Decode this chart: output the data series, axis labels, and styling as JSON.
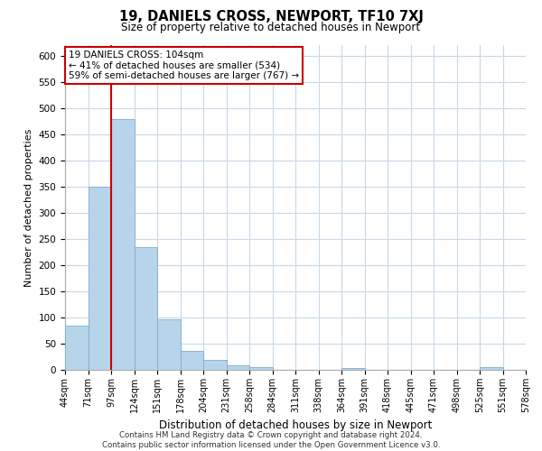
{
  "title": "19, DANIELS CROSS, NEWPORT, TF10 7XJ",
  "subtitle": "Size of property relative to detached houses in Newport",
  "xlabel": "Distribution of detached houses by size in Newport",
  "ylabel": "Number of detached properties",
  "bar_values": [
    85,
    350,
    478,
    235,
    97,
    37,
    19,
    8,
    5,
    0,
    0,
    0,
    3,
    0,
    0,
    0,
    0,
    0,
    5,
    0
  ],
  "bar_labels": [
    "44sqm",
    "71sqm",
    "97sqm",
    "124sqm",
    "151sqm",
    "178sqm",
    "204sqm",
    "231sqm",
    "258sqm",
    "284sqm",
    "311sqm",
    "338sqm",
    "364sqm",
    "391sqm",
    "418sqm",
    "445sqm",
    "471sqm",
    "498sqm",
    "525sqm",
    "551sqm",
    "578sqm"
  ],
  "bar_color": "#b8d4ea",
  "bar_edge_color": "#7aaed0",
  "vline_color": "#cc0000",
  "ylim": [
    0,
    620
  ],
  "yticks": [
    0,
    50,
    100,
    150,
    200,
    250,
    300,
    350,
    400,
    450,
    500,
    550,
    600
  ],
  "annotation_title": "19 DANIELS CROSS: 104sqm",
  "annotation_line1": "← 41% of detached houses are smaller (534)",
  "annotation_line2": "59% of semi-detached houses are larger (767) →",
  "footer_line1": "Contains HM Land Registry data © Crown copyright and database right 2024.",
  "footer_line2": "Contains public sector information licensed under the Open Government Licence v3.0.",
  "background_color": "#ffffff",
  "grid_color": "#c8d8e8"
}
